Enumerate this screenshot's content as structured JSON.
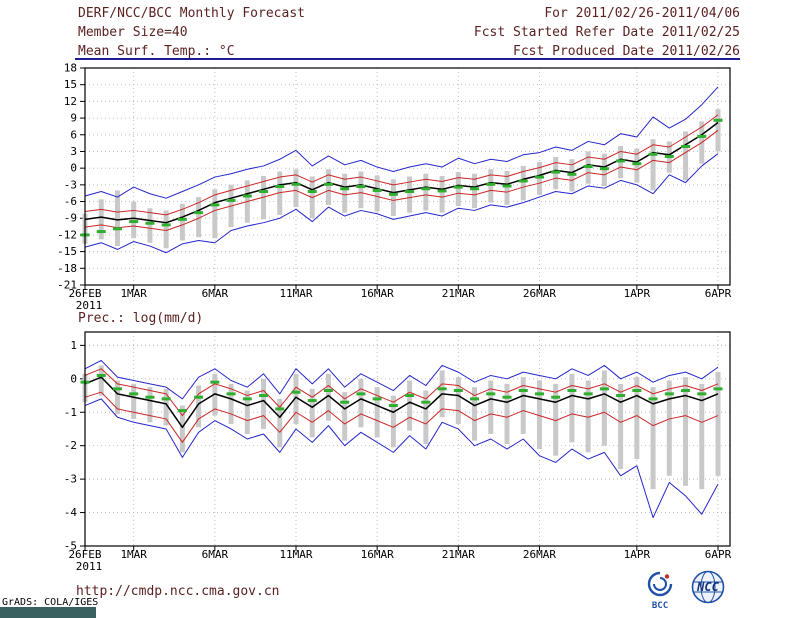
{
  "header": {
    "title": "DERF/NCC/BCC Monthly Forecast",
    "member_size": "Member Size=40",
    "for_range": "For 2011/02/26-2011/04/06",
    "fcst_started": "Fcst Started Refer Date 2011/02/25",
    "fcst_produced": "Fcst Produced Date 2011/02/26"
  },
  "footer": {
    "url": "http://cmdp.ncc.cma.gov.cn",
    "grads_credit": "GrADS: COLA/IGES",
    "bcc_label": "BCC",
    "ncc_label": "NCC"
  },
  "colors": {
    "header_text": "#5c2222",
    "url_text": "#5c2222",
    "credit_text": "#000000",
    "underline": "#1c1c8e",
    "axis_text": "#000000",
    "frame": "#000000",
    "grid": "#b8b8b8",
    "bottom_bar": "#3a6060",
    "logo_blue": "#2050a8",
    "logo_red": "#c03030"
  },
  "chart_data": [
    {
      "type": "line",
      "title": "Mean Surf. Temp.: °C",
      "xlabel": "",
      "ylabel": "°C",
      "ylim": [
        -21,
        18
      ],
      "grid": true,
      "legend": "none",
      "n_days": 40,
      "yticks": [
        -21,
        -18,
        -15,
        -12,
        -9,
        -6,
        -3,
        0,
        3,
        6,
        9,
        12,
        15,
        18
      ],
      "x_ticks": [
        {
          "day": 0,
          "label": "26FEB",
          "sub": "2011"
        },
        {
          "day": 3,
          "label": "1MAR"
        },
        {
          "day": 8,
          "label": "6MAR"
        },
        {
          "day": 13,
          "label": "11MAR"
        },
        {
          "day": 18,
          "label": "16MAR"
        },
        {
          "day": 23,
          "label": "21MAR"
        },
        {
          "day": 28,
          "label": "26MAR"
        },
        {
          "day": 34,
          "label": "1APR"
        },
        {
          "day": 39,
          "label": "6APR"
        }
      ],
      "series": [
        {
          "name": "ensemble-spread",
          "style": "bar",
          "color": "#c9c9c9",
          "low": [
            -13.6,
            -12.8,
            -14.0,
            -12.6,
            -13.4,
            -14.4,
            -13.0,
            -12.4,
            -12.6,
            -10.6,
            -9.8,
            -9.2,
            -8.4,
            -7.0,
            -9.0,
            -6.6,
            -8.0,
            -7.2,
            -7.8,
            -8.6,
            -8.0,
            -7.6,
            -8.0,
            -6.8,
            -7.2,
            -6.2,
            -6.6,
            -5.8,
            -4.8,
            -3.8,
            -4.2,
            -2.8,
            -3.2,
            -1.8,
            -2.6,
            -4.0,
            -0.8,
            -2.2,
            0.8,
            3.0
          ],
          "high": [
            -8.2,
            -5.6,
            -4.0,
            -6.0,
            -7.2,
            -7.6,
            -6.4,
            -5.2,
            -3.8,
            -3.0,
            -2.2,
            -1.4,
            -0.6,
            -0.2,
            -1.5,
            -0.2,
            -1.0,
            -0.6,
            -1.3,
            -2.0,
            -1.5,
            -1.0,
            -1.4,
            -0.7,
            -1.0,
            -0.2,
            -0.5,
            0.4,
            1.1,
            2.0,
            1.6,
            3.0,
            2.6,
            4.0,
            3.5,
            5.2,
            4.8,
            6.6,
            8.4,
            10.6
          ]
        },
        {
          "name": "ensemble-max",
          "style": "line",
          "color": "#2626cc",
          "width": 1,
          "values": [
            -5.0,
            -4.2,
            -5.2,
            -3.4,
            -4.6,
            -5.4,
            -4.2,
            -3.0,
            -1.6,
            -1.0,
            -0.2,
            0.4,
            1.6,
            3.2,
            0.4,
            2.2,
            0.6,
            1.4,
            0.2,
            -0.6,
            0.2,
            0.8,
            0.2,
            1.8,
            0.8,
            1.6,
            1.2,
            2.4,
            2.8,
            3.8,
            3.2,
            4.8,
            4.2,
            6.2,
            5.6,
            9.2,
            7.2,
            8.8,
            11.4,
            14.6
          ]
        },
        {
          "name": "ensemble-min",
          "style": "line",
          "color": "#2626cc",
          "width": 1,
          "values": [
            -14.2,
            -13.4,
            -14.6,
            -13.2,
            -14.0,
            -15.2,
            -13.6,
            -13.0,
            -13.4,
            -11.2,
            -10.4,
            -9.8,
            -9.0,
            -7.4,
            -9.6,
            -7.0,
            -8.6,
            -7.6,
            -8.2,
            -9.2,
            -8.6,
            -8.0,
            -8.6,
            -7.2,
            -7.6,
            -6.6,
            -7.0,
            -6.2,
            -5.2,
            -4.2,
            -4.6,
            -3.2,
            -3.6,
            -2.2,
            -3.0,
            -4.6,
            -1.2,
            -2.6,
            0.4,
            2.6
          ]
        },
        {
          "name": "upper-quartile",
          "style": "line",
          "color": "#cc2626",
          "width": 1,
          "values": [
            -7.8,
            -7.4,
            -7.9,
            -7.6,
            -8.0,
            -8.4,
            -7.4,
            -6.2,
            -4.8,
            -4.0,
            -3.2,
            -2.4,
            -1.6,
            -1.2,
            -2.5,
            -1.2,
            -2.0,
            -1.6,
            -2.3,
            -3.0,
            -2.5,
            -2.0,
            -2.4,
            -1.7,
            -2.0,
            -1.2,
            -1.5,
            -0.6,
            0.1,
            1.0,
            0.6,
            2.0,
            1.6,
            3.0,
            2.5,
            4.2,
            3.8,
            5.6,
            7.4,
            9.6
          ]
        },
        {
          "name": "lower-quartile",
          "style": "line",
          "color": "#cc2626",
          "width": 1,
          "values": [
            -10.6,
            -10.2,
            -10.7,
            -10.4,
            -10.8,
            -11.2,
            -10.2,
            -9.0,
            -7.6,
            -6.8,
            -6.0,
            -5.2,
            -4.4,
            -4.0,
            -5.3,
            -4.0,
            -4.8,
            -4.4,
            -5.1,
            -5.8,
            -5.3,
            -4.8,
            -5.2,
            -4.5,
            -4.8,
            -4.0,
            -4.3,
            -3.4,
            -2.7,
            -1.8,
            -2.2,
            -0.8,
            -1.2,
            0.2,
            -0.3,
            1.4,
            1.0,
            2.8,
            4.6,
            6.8
          ]
        },
        {
          "name": "ensemble-mean",
          "style": "line",
          "color": "#000000",
          "width": 1.5,
          "values": [
            -9.2,
            -8.8,
            -9.3,
            -9.0,
            -9.4,
            -9.8,
            -8.8,
            -7.6,
            -6.2,
            -5.4,
            -4.6,
            -3.8,
            -3.0,
            -2.6,
            -3.9,
            -2.6,
            -3.4,
            -3.0,
            -3.7,
            -4.4,
            -3.9,
            -3.4,
            -3.8,
            -3.1,
            -3.4,
            -2.6,
            -2.9,
            -2.0,
            -1.3,
            -0.4,
            -0.8,
            0.6,
            0.2,
            1.6,
            1.1,
            2.8,
            2.4,
            4.2,
            6.0,
            8.2
          ]
        },
        {
          "name": "climatology",
          "style": "dash",
          "color": "#2fae2f",
          "values": [
            -12.0,
            -11.4,
            -10.9,
            -9.6,
            -9.9,
            -10.2,
            -9.2,
            -8.0,
            -6.6,
            -5.8,
            -5.0,
            -4.2,
            -3.3,
            -2.9,
            -4.2,
            -2.9,
            -3.7,
            -3.3,
            -4.0,
            -4.7,
            -4.2,
            -3.7,
            -4.1,
            -3.4,
            -3.7,
            -2.9,
            -3.2,
            -2.3,
            -1.6,
            -0.7,
            -1.1,
            0.3,
            -0.1,
            1.3,
            0.8,
            2.5,
            2.1,
            3.9,
            5.7,
            8.6
          ]
        }
      ]
    },
    {
      "type": "line",
      "title": "Prec.: log(mm/d)",
      "xlabel": "",
      "ylabel": "log(mm/d)",
      "ylim": [
        -5,
        1.4
      ],
      "grid": true,
      "legend": "none",
      "n_days": 40,
      "yticks": [
        -5,
        -4,
        -3,
        -2,
        -1,
        0,
        1
      ],
      "x_ticks": [
        {
          "day": 0,
          "label": "26FEB",
          "sub": "2011"
        },
        {
          "day": 3,
          "label": "1MAR"
        },
        {
          "day": 8,
          "label": "6MAR"
        },
        {
          "day": 13,
          "label": "11MAR"
        },
        {
          "day": 18,
          "label": "16MAR"
        },
        {
          "day": 23,
          "label": "21MAR"
        },
        {
          "day": 28,
          "label": "26MAR"
        },
        {
          "day": 34,
          "label": "1APR"
        },
        {
          "day": 39,
          "label": "6APR"
        }
      ],
      "series": [
        {
          "name": "ensemble-spread",
          "style": "bar",
          "color": "#c9c9c9",
          "low": [
            -0.7,
            -0.5,
            -1.05,
            -1.2,
            -1.3,
            -1.4,
            -2.2,
            -1.45,
            -1.1,
            -1.35,
            -1.65,
            -1.5,
            -2.05,
            -1.35,
            -1.75,
            -1.25,
            -1.85,
            -1.45,
            -1.75,
            -2.05,
            -1.55,
            -1.95,
            -1.15,
            -1.35,
            -1.85,
            -1.65,
            -1.95,
            -1.65,
            -2.1,
            -2.3,
            -1.9,
            -2.2,
            -2.0,
            -2.7,
            -2.4,
            -3.3,
            -2.9,
            -3.2,
            -3.3,
            -2.9
          ],
          "high": [
            0.15,
            0.4,
            -0.05,
            -0.15,
            -0.25,
            -0.3,
            -0.8,
            -0.2,
            0.15,
            -0.15,
            -0.35,
            0.0,
            -0.6,
            0.15,
            -0.3,
            0.15,
            -0.4,
            0.0,
            -0.25,
            -0.5,
            -0.05,
            -0.35,
            0.25,
            0.05,
            -0.25,
            -0.05,
            -0.15,
            0.05,
            -0.05,
            -0.15,
            0.15,
            -0.05,
            0.25,
            -0.15,
            0.05,
            -0.25,
            -0.05,
            0.05,
            -0.15,
            0.2
          ]
        },
        {
          "name": "ensemble-max",
          "style": "line",
          "color": "#2626cc",
          "width": 1,
          "values": [
            0.3,
            0.55,
            0.05,
            -0.05,
            -0.15,
            -0.25,
            -0.6,
            0.05,
            0.3,
            -0.05,
            -0.25,
            0.15,
            -0.45,
            0.3,
            -0.15,
            0.3,
            -0.25,
            0.15,
            -0.1,
            -0.35,
            0.1,
            -0.2,
            0.4,
            0.2,
            -0.1,
            0.1,
            0.0,
            0.2,
            0.1,
            0.0,
            0.3,
            0.1,
            0.4,
            0.0,
            0.2,
            -0.1,
            0.1,
            0.2,
            0.0,
            0.35
          ]
        },
        {
          "name": "ensemble-min",
          "style": "line",
          "color": "#2626cc",
          "width": 1,
          "values": [
            -0.8,
            -0.6,
            -1.15,
            -1.3,
            -1.4,
            -1.5,
            -2.35,
            -1.6,
            -1.25,
            -1.5,
            -1.8,
            -1.65,
            -2.2,
            -1.5,
            -1.9,
            -1.4,
            -2.0,
            -1.6,
            -1.9,
            -2.2,
            -1.7,
            -2.1,
            -1.3,
            -1.5,
            -2.0,
            -1.8,
            -2.1,
            -1.8,
            -2.3,
            -2.5,
            -2.1,
            -2.4,
            -2.2,
            -2.9,
            -2.6,
            -4.15,
            -3.1,
            -3.5,
            -4.05,
            -3.15
          ]
        },
        {
          "name": "upper-quartile",
          "style": "line",
          "color": "#cc2626",
          "width": 1,
          "values": [
            0.1,
            0.3,
            -0.15,
            -0.25,
            -0.35,
            -0.45,
            -1.1,
            -0.45,
            -0.15,
            -0.3,
            -0.5,
            -0.35,
            -0.85,
            -0.25,
            -0.55,
            -0.2,
            -0.6,
            -0.3,
            -0.5,
            -0.7,
            -0.4,
            -0.6,
            -0.15,
            -0.2,
            -0.5,
            -0.3,
            -0.4,
            -0.2,
            -0.3,
            -0.4,
            -0.2,
            -0.3,
            -0.15,
            -0.4,
            -0.2,
            -0.45,
            -0.3,
            -0.2,
            -0.35,
            -0.15
          ]
        },
        {
          "name": "lower-quartile",
          "style": "line",
          "color": "#cc2626",
          "width": 1,
          "values": [
            -0.55,
            -0.4,
            -0.9,
            -1.0,
            -1.1,
            -1.2,
            -1.9,
            -1.2,
            -0.9,
            -1.05,
            -1.25,
            -1.1,
            -1.6,
            -1.0,
            -1.3,
            -0.95,
            -1.35,
            -1.05,
            -1.25,
            -1.45,
            -1.15,
            -1.35,
            -0.9,
            -0.95,
            -1.25,
            -1.05,
            -1.15,
            -0.95,
            -1.1,
            -1.25,
            -1.05,
            -1.15,
            -1.0,
            -1.3,
            -1.1,
            -1.4,
            -1.2,
            -1.1,
            -1.3,
            -1.1
          ]
        },
        {
          "name": "ensemble-mean",
          "style": "line",
          "color": "#000000",
          "width": 1.5,
          "values": [
            -0.15,
            0.05,
            -0.45,
            -0.55,
            -0.65,
            -0.75,
            -1.45,
            -0.75,
            -0.45,
            -0.6,
            -0.8,
            -0.65,
            -1.15,
            -0.55,
            -0.85,
            -0.5,
            -0.9,
            -0.6,
            -0.8,
            -1.0,
            -0.7,
            -0.9,
            -0.45,
            -0.5,
            -0.8,
            -0.6,
            -0.7,
            -0.5,
            -0.6,
            -0.7,
            -0.5,
            -0.6,
            -0.45,
            -0.7,
            -0.5,
            -0.75,
            -0.6,
            -0.5,
            -0.65,
            -0.45
          ]
        },
        {
          "name": "climatology",
          "style": "dash",
          "color": "#2fae2f",
          "values": [
            -0.1,
            0.1,
            -0.3,
            -0.45,
            -0.55,
            -0.6,
            -0.95,
            -0.55,
            -0.1,
            -0.45,
            -0.6,
            -0.5,
            -0.9,
            -0.4,
            -0.65,
            -0.35,
            -0.7,
            -0.45,
            -0.6,
            -0.8,
            -0.5,
            -0.7,
            -0.3,
            -0.35,
            -0.6,
            -0.45,
            -0.55,
            -0.35,
            -0.45,
            -0.55,
            -0.35,
            -0.45,
            -0.3,
            -0.5,
            -0.35,
            -0.6,
            -0.45,
            -0.35,
            -0.45,
            -0.3
          ]
        }
      ]
    }
  ]
}
